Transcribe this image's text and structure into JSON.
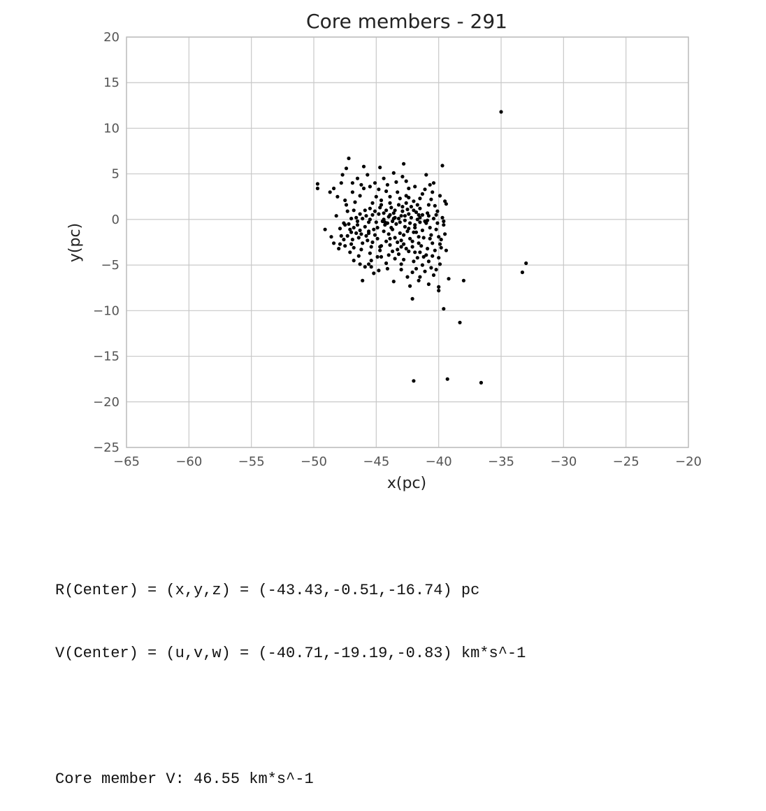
{
  "chart_data": {
    "type": "scatter",
    "title": "Core members - 291",
    "xlabel": "x(pc)",
    "ylabel": "y(pc)",
    "xlim": [
      -65,
      -20
    ],
    "ylim": [
      -25,
      20
    ],
    "xticks": [
      -65,
      -60,
      -55,
      -50,
      -45,
      -40,
      -35,
      -30,
      -25,
      -20
    ],
    "xtick_labels": [
      "−65",
      "−60",
      "−55",
      "−50",
      "−45",
      "−40",
      "−35",
      "−30",
      "−25",
      "−20"
    ],
    "yticks": [
      20,
      15,
      10,
      5,
      0,
      -5,
      -10,
      -15,
      -20,
      -25
    ],
    "ytick_labels": [
      "20",
      "15",
      "10",
      "5",
      "0",
      "−5",
      "−10",
      "−15",
      "−20",
      "−25"
    ],
    "grid": true,
    "marker_color": "#000000",
    "series": [
      {
        "points": [
          [
            -35.0,
            11.8
          ],
          [
            -47.2,
            6.7
          ],
          [
            -46.0,
            5.8
          ],
          [
            -44.7,
            5.7
          ],
          [
            -42.8,
            6.1
          ],
          [
            -39.7,
            5.9
          ],
          [
            -49.7,
            3.9
          ],
          [
            -49.7,
            3.4
          ],
          [
            -48.4,
            3.4
          ],
          [
            -47.7,
            4.9
          ],
          [
            -47.4,
            5.6
          ],
          [
            -46.9,
            4.0
          ],
          [
            -46.5,
            4.5
          ],
          [
            -45.1,
            4.0
          ],
          [
            -43.6,
            5.1
          ],
          [
            -42.9,
            4.7
          ],
          [
            -41.0,
            4.9
          ],
          [
            -40.7,
            3.8
          ],
          [
            -40.5,
            3.0
          ],
          [
            -39.4,
            1.7
          ],
          [
            -39.5,
            2.0
          ],
          [
            -41.5,
            2.3
          ],
          [
            -42.4,
            3.4
          ],
          [
            -44.2,
            3.1
          ],
          [
            -45.0,
            2.5
          ],
          [
            -46.3,
            2.6
          ],
          [
            -47.4,
            1.6
          ],
          [
            -48.2,
            0.4
          ],
          [
            -47.6,
            -0.4
          ],
          [
            -46.8,
            -0.9
          ],
          [
            -45.6,
            -1.3
          ],
          [
            -44.3,
            -0.6
          ],
          [
            -43.2,
            0.1
          ],
          [
            -42.4,
            0.6
          ],
          [
            -41.7,
            0.0
          ],
          [
            -41.0,
            -0.4
          ],
          [
            -40.2,
            -1.1
          ],
          [
            -39.6,
            -0.6
          ],
          [
            -40.3,
            1.5
          ],
          [
            -40.9,
            0.7
          ],
          [
            -41.5,
            1.2
          ],
          [
            -42.9,
            1.4
          ],
          [
            -43.5,
            1.0
          ],
          [
            -44.0,
            0.3
          ],
          [
            -44.5,
            -0.2
          ],
          [
            -45.3,
            0.5
          ],
          [
            -45.9,
            1.0
          ],
          [
            -46.6,
            0.2
          ],
          [
            -47.1,
            -1.1
          ],
          [
            -47.8,
            -1.8
          ],
          [
            -49.1,
            -1.1
          ],
          [
            -48.4,
            -2.6
          ],
          [
            -48.0,
            -3.2
          ],
          [
            -47.1,
            -3.6
          ],
          [
            -46.2,
            -3.3
          ],
          [
            -45.3,
            -2.5
          ],
          [
            -44.6,
            -2.9
          ],
          [
            -43.9,
            -2.1
          ],
          [
            -43.1,
            -1.5
          ],
          [
            -42.4,
            -1.0
          ],
          [
            -41.8,
            -1.4
          ],
          [
            -41.2,
            -2.0
          ],
          [
            -40.5,
            -2.6
          ],
          [
            -39.8,
            -3.1
          ],
          [
            -39.4,
            -3.4
          ],
          [
            -40.0,
            -4.2
          ],
          [
            -40.8,
            -4.6
          ],
          [
            -41.5,
            -3.6
          ],
          [
            -42.1,
            -3.0
          ],
          [
            -43.0,
            -3.0
          ],
          [
            -43.7,
            -3.5
          ],
          [
            -44.6,
            -4.1
          ],
          [
            -45.4,
            -4.5
          ],
          [
            -45.9,
            -5.2
          ],
          [
            -45.2,
            -5.9
          ],
          [
            -44.8,
            -5.6
          ],
          [
            -43.0,
            -4.9
          ],
          [
            -42.1,
            -5.8
          ],
          [
            -41.5,
            -6.3
          ],
          [
            -40.4,
            -6.1
          ],
          [
            -40.0,
            -7.4
          ],
          [
            -40.0,
            -7.8
          ],
          [
            -39.2,
            -6.5
          ],
          [
            -38.0,
            -6.7
          ],
          [
            -42.3,
            -7.3
          ],
          [
            -42.1,
            -8.7
          ],
          [
            -39.6,
            -9.8
          ],
          [
            -38.3,
            -11.3
          ],
          [
            -33.3,
            -5.8
          ],
          [
            -33.0,
            -4.8
          ],
          [
            -42.0,
            -17.7
          ],
          [
            -39.3,
            -17.5
          ],
          [
            -36.6,
            -17.9
          ],
          [
            -43.6,
            -6.8
          ],
          [
            -46.1,
            -6.7
          ],
          [
            -43.6,
            0.7
          ],
          [
            -43.1,
            -0.3
          ],
          [
            -42.7,
            -0.8
          ],
          [
            -42.2,
            0.2
          ],
          [
            -41.9,
            -0.6
          ],
          [
            -43.8,
            -0.9
          ],
          [
            -44.2,
            1.0
          ],
          [
            -42.6,
            1.8
          ],
          [
            -41.3,
            0.5
          ],
          [
            -40.7,
            -0.9
          ],
          [
            -41.6,
            -1.9
          ],
          [
            -42.8,
            -1.7
          ],
          [
            -44.0,
            -1.6
          ],
          [
            -44.9,
            -0.9
          ],
          [
            -45.6,
            -0.3
          ],
          [
            -46.2,
            -1.6
          ],
          [
            -46.9,
            -2.2
          ],
          [
            -47.5,
            -2.9
          ],
          [
            -48.6,
            -1.9
          ],
          [
            -47.3,
            0.9
          ],
          [
            -46.7,
            1.9
          ],
          [
            -46.0,
            3.4
          ],
          [
            -45.3,
            1.8
          ],
          [
            -44.6,
            2.1
          ],
          [
            -43.9,
            2.5
          ],
          [
            -43.3,
            3.0
          ],
          [
            -42.6,
            2.6
          ],
          [
            -42.0,
            2.0
          ],
          [
            -41.3,
            2.8
          ],
          [
            -40.6,
            2.2
          ],
          [
            -40.1,
            0.9
          ],
          [
            -39.7,
            0.2
          ],
          [
            -40.4,
            0.1
          ],
          [
            -41.1,
            -0.2
          ],
          [
            -41.8,
            0.8
          ],
          [
            -42.5,
            1.1
          ],
          [
            -43.2,
            1.6
          ],
          [
            -43.9,
            1.8
          ],
          [
            -44.7,
            1.3
          ],
          [
            -45.5,
            1.2
          ],
          [
            -46.3,
            0.6
          ],
          [
            -47.0,
            0.1
          ],
          [
            -47.5,
            -0.6
          ],
          [
            -46.5,
            -0.6
          ],
          [
            -45.8,
            -1.8
          ],
          [
            -45.1,
            -1.7
          ],
          [
            -44.4,
            -1.3
          ],
          [
            -43.7,
            -1.1
          ],
          [
            -43.0,
            -2.3
          ],
          [
            -42.3,
            -2.1
          ],
          [
            -41.6,
            -2.6
          ],
          [
            -40.9,
            -3.2
          ],
          [
            -40.3,
            -3.4
          ],
          [
            -41.0,
            -3.9
          ],
          [
            -41.7,
            -4.2
          ],
          [
            -42.4,
            -3.5
          ],
          [
            -43.2,
            -3.8
          ],
          [
            -43.9,
            -2.8
          ],
          [
            -44.7,
            -3.4
          ],
          [
            -45.5,
            -3.7
          ],
          [
            -46.4,
            -4.0
          ],
          [
            -47.0,
            -2.7
          ],
          [
            -46.4,
            -2.0
          ],
          [
            -45.7,
            -2.3
          ],
          [
            -45.0,
            -0.3
          ],
          [
            -44.3,
            -0.3
          ],
          [
            -43.5,
            0.2
          ],
          [
            -42.9,
            0.9
          ],
          [
            -42.2,
            1.4
          ],
          [
            -41.5,
            0.2
          ],
          [
            -40.8,
            0.4
          ],
          [
            -40.1,
            -0.4
          ],
          [
            -39.5,
            -1.6
          ],
          [
            -39.8,
            -2.2
          ],
          [
            -40.6,
            -1.7
          ],
          [
            -41.3,
            -1.2
          ],
          [
            -42.0,
            -1.4
          ],
          [
            -42.7,
            -0.1
          ],
          [
            -43.4,
            -0.5
          ],
          [
            -44.1,
            -0.4
          ],
          [
            -44.8,
            0.6
          ],
          [
            -45.5,
            0.0
          ],
          [
            -46.1,
            0.1
          ],
          [
            -46.8,
            1.0
          ],
          [
            -47.5,
            2.1
          ],
          [
            -48.1,
            2.5
          ],
          [
            -48.7,
            3.0
          ],
          [
            -46.9,
            3.0
          ],
          [
            -46.2,
            3.8
          ],
          [
            -45.5,
            3.6
          ],
          [
            -44.8,
            3.3
          ],
          [
            -44.1,
            3.8
          ],
          [
            -43.4,
            4.1
          ],
          [
            -42.6,
            4.2
          ],
          [
            -41.9,
            3.6
          ],
          [
            -41.1,
            3.3
          ],
          [
            -40.4,
            4.0
          ],
          [
            -39.9,
            2.6
          ],
          [
            -40.8,
            1.6
          ],
          [
            -41.7,
            1.6
          ],
          [
            -42.4,
            2.4
          ],
          [
            -43.1,
            2.3
          ],
          [
            -43.8,
            1.3
          ],
          [
            -44.4,
            0.7
          ],
          [
            -45.1,
            0.9
          ],
          [
            -45.8,
            0.4
          ],
          [
            -46.5,
            -0.2
          ],
          [
            -47.2,
            -0.5
          ],
          [
            -47.9,
            -1.0
          ],
          [
            -47.6,
            -2.2
          ],
          [
            -47.0,
            -1.4
          ],
          [
            -46.3,
            -1.2
          ],
          [
            -45.6,
            -1.5
          ],
          [
            -44.9,
            -2.1
          ],
          [
            -44.2,
            -2.4
          ],
          [
            -43.5,
            -2.0
          ],
          [
            -42.8,
            -2.7
          ],
          [
            -42.1,
            -2.4
          ],
          [
            -41.4,
            -2.9
          ],
          [
            -40.7,
            -2.1
          ],
          [
            -40.0,
            -1.9
          ],
          [
            -39.6,
            -0.2
          ],
          [
            -40.2,
            0.5
          ],
          [
            -40.9,
            -0.1
          ],
          [
            -41.6,
            0.5
          ],
          [
            -42.3,
            -0.4
          ],
          [
            -43.0,
            0.4
          ],
          [
            -43.7,
            -0.2
          ],
          [
            -44.4,
            0.0
          ],
          [
            -45.2,
            -1.1
          ],
          [
            -45.9,
            -0.8
          ],
          [
            -46.6,
            -1.5
          ],
          [
            -47.3,
            -1.8
          ],
          [
            -47.9,
            -2.7
          ],
          [
            -46.8,
            -3.1
          ],
          [
            -46.1,
            -2.6
          ],
          [
            -45.4,
            -3.0
          ],
          [
            -44.7,
            -3.0
          ],
          [
            -44.0,
            -3.9
          ],
          [
            -43.3,
            -3.3
          ],
          [
            -42.6,
            -3.2
          ],
          [
            -41.9,
            -3.6
          ],
          [
            -41.2,
            -4.1
          ],
          [
            -40.5,
            -4.0
          ],
          [
            -39.9,
            -2.7
          ],
          [
            -39.9,
            -4.9
          ],
          [
            -40.6,
            -5.3
          ],
          [
            -41.3,
            -5.0
          ],
          [
            -42.0,
            -4.6
          ],
          [
            -42.8,
            -4.4
          ],
          [
            -43.5,
            -4.3
          ],
          [
            -44.2,
            -4.8
          ],
          [
            -44.9,
            -4.1
          ],
          [
            -45.6,
            -4.9
          ],
          [
            -46.3,
            -4.9
          ],
          [
            -46.8,
            -4.5
          ],
          [
            -45.4,
            -5.2
          ],
          [
            -44.1,
            -5.4
          ],
          [
            -43.0,
            -5.5
          ],
          [
            -41.8,
            -5.4
          ],
          [
            -41.1,
            -5.7
          ],
          [
            -40.2,
            -5.5
          ],
          [
            -41.6,
            -6.7
          ],
          [
            -42.5,
            -6.3
          ],
          [
            -40.8,
            -7.1
          ],
          [
            -43.3,
            -2.5
          ],
          [
            -42.5,
            -1.3
          ],
          [
            -41.9,
            -0.9
          ],
          [
            -43.6,
            0.1
          ],
          [
            -42.7,
            0.4
          ],
          [
            -41.5,
            -0.3
          ],
          [
            -43.9,
            0.5
          ],
          [
            -44.6,
            1.6
          ],
          [
            -42.0,
            1.0
          ],
          [
            -44.4,
            4.5
          ],
          [
            -45.7,
            4.9
          ],
          [
            -47.8,
            4.0
          ]
        ]
      }
    ]
  },
  "output": {
    "r_center": "R(Center) = (x,y,z) = (-43.43,-0.51,-16.74) pc",
    "v_center": "V(Center) = (u,v,w) = (-40.71,-19.19,-0.83) km*s^-1",
    "blank": "",
    "core_v": "Core member V: 46.55 km*s^-1"
  }
}
